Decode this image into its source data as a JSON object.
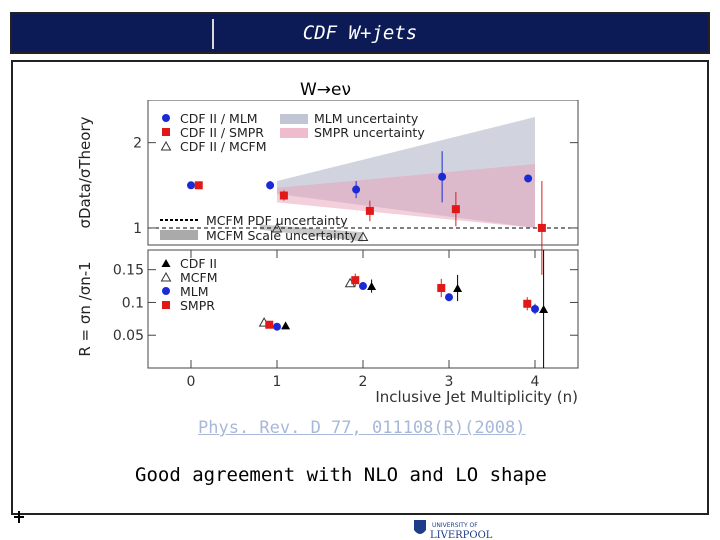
{
  "slide": {
    "title": "CDF W+jets",
    "subtitle": "W→eν",
    "reference": "Phys. Rev. D 77, 011108(R)(2008)",
    "caption": "Good agreement with NLO and LO shape",
    "logo_text_top": "UNIVERSITY OF",
    "logo_text_bottom": "LIVERPOOL"
  },
  "colors": {
    "title_bar": "#0c1a55",
    "mlm": "#1a2bd6",
    "smpr": "#e01818",
    "cdf": "#000000",
    "mlm_band": "#9aa0b8",
    "smpr_band": "#e8a0b8"
  },
  "chart_data": [
    {
      "type": "scatter",
      "ylabel": "σData/σTheory",
      "yticks": [
        "1",
        "2"
      ],
      "ylim": [
        0.8,
        2.5
      ],
      "xlim": [
        -0.5,
        4.5
      ],
      "legend_position": "top-left",
      "legend": [
        "CDF II / MLM",
        "CDF II / SMPR",
        "CDF II / MCFM",
        "MLM uncertainty",
        "SMPR uncertainty",
        "MCFM PDF uncertainty",
        "MCFM Scale uncertainty"
      ],
      "series": [
        {
          "name": "CDF II / MLM",
          "x": [
            1,
            2,
            3,
            4
          ],
          "y": [
            1.5,
            1.45,
            1.6,
            1.58
          ],
          "err": [
            0.05,
            0.1,
            0.3,
            0.0
          ]
        },
        {
          "name": "CDF II / SMPR",
          "x": [
            1,
            2,
            3,
            4
          ],
          "y": [
            1.38,
            1.2,
            1.22,
            1.0
          ],
          "err": [
            0.06,
            0.12,
            0.2,
            0.55
          ]
        },
        {
          "name": "CDF II / MCFM",
          "x": [
            1,
            2
          ],
          "y": [
            1.0,
            0.9
          ],
          "err": [
            0.0,
            0.0
          ]
        }
      ],
      "reference_line": 1
    },
    {
      "type": "scatter",
      "xlabel": "Inclusive Jet Multiplicity (n)",
      "ylabel": "R = σn /σn-1",
      "xticks": [
        "0",
        "1",
        "2",
        "3",
        "4"
      ],
      "yticks": [
        "0.05",
        "0.1",
        "0.15"
      ],
      "ylim": [
        0.0,
        0.18
      ],
      "xlim": [
        -0.5,
        4.5
      ],
      "legend_position": "top-left",
      "legend": [
        "CDF II",
        "MCFM",
        "MLM",
        "SMPR"
      ],
      "series": [
        {
          "name": "CDF II",
          "x": [
            1,
            2,
            3,
            4
          ],
          "y": [
            0.065,
            0.125,
            0.122,
            0.09
          ],
          "err": [
            0.004,
            0.01,
            0.02,
            0.09
          ]
        },
        {
          "name": "MCFM",
          "x": [
            1,
            2
          ],
          "y": [
            0.07,
            0.13
          ],
          "err": [
            0.0,
            0.0
          ]
        },
        {
          "name": "MLM",
          "x": [
            1,
            2,
            3,
            4
          ],
          "y": [
            0.063,
            0.125,
            0.108,
            0.09
          ],
          "err": [
            0.003,
            0.006,
            0.006,
            0.008
          ]
        },
        {
          "name": "SMPR",
          "x": [
            1,
            2,
            3,
            4
          ],
          "y": [
            0.066,
            0.134,
            0.122,
            0.098
          ],
          "err": [
            0.003,
            0.01,
            0.014,
            0.01
          ]
        }
      ]
    }
  ]
}
